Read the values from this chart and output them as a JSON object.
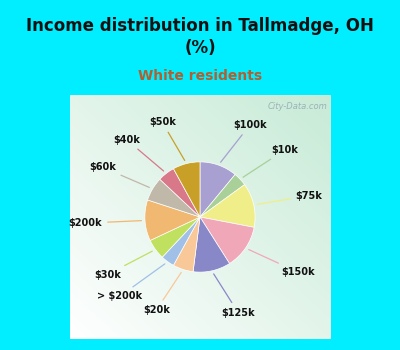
{
  "title": "Income distribution in Tallmadge, OH\n(%)",
  "subtitle": "White residents",
  "title_color": "#111111",
  "subtitle_color": "#b06030",
  "bg_cyan": "#00eeff",
  "watermark": "City-Data.com",
  "labels": [
    "$100k",
    "$10k",
    "$75k",
    "$150k",
    "$125k",
    "$20k",
    "> $200k",
    "$30k",
    "$200k",
    "$60k",
    "$40k",
    "$50k"
  ],
  "values": [
    11,
    4,
    13,
    13,
    11,
    6,
    4,
    6,
    12,
    7,
    5,
    8
  ],
  "colors": [
    "#a8a0d0",
    "#a8d098",
    "#f0ee88",
    "#f0a8b8",
    "#8888c8",
    "#f8c898",
    "#a0c0e8",
    "#c0e060",
    "#f0b870",
    "#c0b8a8",
    "#d87888",
    "#c8a028"
  ],
  "figsize": [
    4.0,
    3.5
  ],
  "dpi": 100,
  "title_fontsize": 12,
  "subtitle_fontsize": 10,
  "label_fontsize": 7
}
